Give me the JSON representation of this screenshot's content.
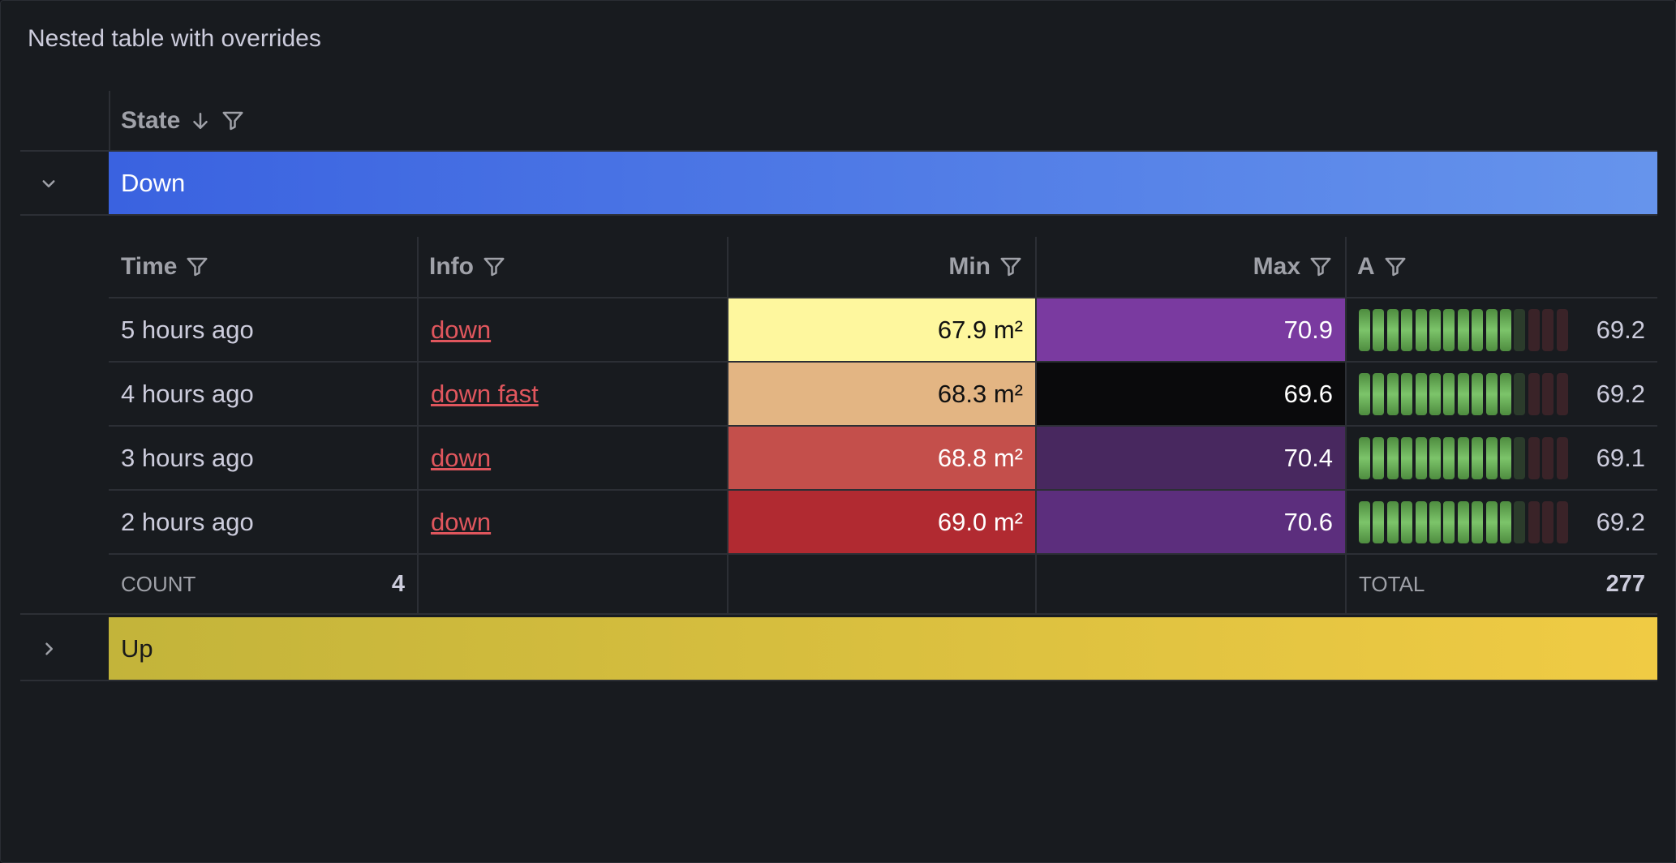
{
  "panel": {
    "title": "Nested table with overrides"
  },
  "table": {
    "header": "State",
    "groups": [
      {
        "label": "Down",
        "expanded": true,
        "gradient": [
          "#3a62e0",
          "#6694ec"
        ],
        "columns": [
          "Time",
          "Info",
          "Min",
          "Max",
          "A"
        ],
        "rows": [
          {
            "cells": [
              "5 hours ago",
              "down",
              "67.9 m²",
              "70.9",
              "69.2"
            ],
            "min_bg": "#fef79e",
            "max_bg": "#7a3aa0"
          },
          {
            "cells": [
              "4 hours ago",
              "down fast",
              "68.3 m²",
              "69.6",
              "69.2"
            ],
            "min_bg": "#e3b583",
            "max_bg": "#0a0a0c"
          },
          {
            "cells": [
              "3 hours ago",
              "down",
              "68.8 m²",
              "70.4",
              "69.1"
            ],
            "min_bg": "#c44f4b",
            "max_bg": "#48285f"
          },
          {
            "cells": [
              "2 hours ago",
              "down",
              "69.0 m²",
              "70.6",
              "69.2"
            ],
            "min_bg": "#b12a31",
            "max_bg": "#5c2e7d"
          }
        ],
        "footer": {
          "count_label": "COUNT",
          "count": "4",
          "total_label": "TOTAL",
          "total": "277"
        }
      },
      {
        "label": "Up",
        "expanded": false,
        "gradient": [
          "#c3b43a",
          "#f0cb44"
        ]
      }
    ]
  }
}
